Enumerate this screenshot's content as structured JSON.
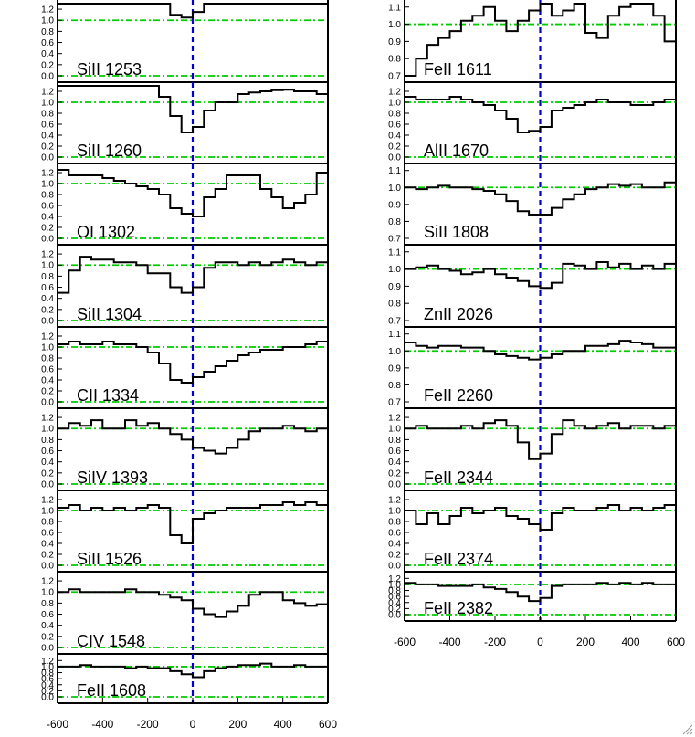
{
  "colors": {
    "axis": "#000000",
    "spectrum": "#000000",
    "continuum": "#00cc00",
    "zero_velocity": "#0000cc"
  },
  "chart_data": {
    "type": "line",
    "x_unit": "velocity",
    "xlim": [
      -600,
      600
    ],
    "x_ticks": [
      -600,
      -400,
      -200,
      0,
      200,
      400,
      600
    ],
    "x_ticks_labels": [
      "-600",
      "-400",
      "-200",
      "0",
      "200",
      "400",
      "600"
    ],
    "grid": false,
    "bin_edges": [
      -600,
      -550,
      -500,
      -450,
      -400,
      -350,
      -300,
      -250,
      -200,
      -150,
      -100,
      -50,
      0,
      50,
      100,
      150,
      200,
      250,
      300,
      350,
      400,
      450,
      500,
      550,
      600
    ],
    "columns": [
      {
        "panels": [
          {
            "label": "SiII 1253",
            "ylim": [
              0.0,
              1.3
            ],
            "yticks": [
              "1.2",
              "1.0",
              "0.8",
              "0.6",
              "0.4",
              "0.2",
              "0.0"
            ],
            "ytick_values": [
              1.2,
              1.0,
              0.8,
              0.6,
              0.4,
              0.2,
              0.0
            ],
            "continuum": [
              1.0,
              0.0
            ],
            "values": [
              1.3,
              1.3,
              1.3,
              1.3,
              1.3,
              1.3,
              1.3,
              1.3,
              1.3,
              1.3,
              1.1,
              1.05,
              1.15,
              1.3,
              1.3,
              1.3,
              1.3,
              1.3,
              1.3,
              1.3,
              1.3,
              1.3,
              1.3,
              1.3
            ]
          },
          {
            "label": "SiII 1260",
            "ylim": [
              0.0,
              1.3
            ],
            "yticks": [
              "1.2",
              "1.0",
              "0.8",
              "0.6",
              "0.4",
              "0.2",
              "0.0"
            ],
            "ytick_values": [
              1.2,
              1.0,
              0.8,
              0.6,
              0.4,
              0.2,
              0.0
            ],
            "continuum": [
              1.0,
              0.0
            ],
            "values": [
              1.3,
              1.3,
              1.3,
              1.3,
              1.3,
              1.3,
              1.3,
              1.3,
              1.3,
              1.1,
              0.75,
              0.45,
              0.55,
              0.85,
              1.0,
              1.0,
              1.15,
              1.18,
              1.2,
              1.22,
              1.23,
              1.2,
              1.2,
              1.15
            ]
          },
          {
            "label": "OI 1302",
            "ylim": [
              0.0,
              1.3
            ],
            "yticks": [
              "1.2",
              "1.0",
              "0.8",
              "0.6",
              "0.4",
              "0.2",
              "0.0"
            ],
            "ytick_values": [
              1.2,
              1.0,
              0.8,
              0.6,
              0.4,
              0.2,
              0.0
            ],
            "continuum": [
              1.0,
              0.0
            ],
            "values": [
              1.25,
              1.15,
              1.15,
              1.15,
              1.1,
              1.05,
              1.0,
              0.95,
              0.9,
              0.8,
              0.55,
              0.45,
              0.4,
              0.75,
              0.9,
              1.15,
              1.15,
              1.15,
              0.9,
              0.75,
              0.55,
              0.65,
              0.8,
              1.2
            ]
          },
          {
            "label": "SiII 1304",
            "ylim": [
              0.0,
              1.3
            ],
            "yticks": [
              "1.2",
              "1.0",
              "0.8",
              "0.6",
              "0.4",
              "0.2",
              "0.0"
            ],
            "ytick_values": [
              1.2,
              1.0,
              0.8,
              0.6,
              0.4,
              0.2,
              0.0
            ],
            "continuum": [
              1.0,
              0.0
            ],
            "values": [
              0.5,
              0.9,
              1.15,
              1.1,
              1.1,
              1.05,
              1.05,
              1.0,
              0.85,
              0.85,
              0.6,
              0.5,
              0.6,
              0.95,
              1.05,
              1.05,
              1.0,
              1.05,
              1.0,
              1.05,
              1.1,
              1.05,
              1.0,
              1.05
            ]
          },
          {
            "label": "CII 1334",
            "ylim": [
              0.0,
              1.3
            ],
            "yticks": [
              "1.2",
              "1.0",
              "0.8",
              "0.6",
              "0.4",
              "0.2",
              "0.0"
            ],
            "ytick_values": [
              1.2,
              1.0,
              0.8,
              0.6,
              0.4,
              0.2,
              0.0
            ],
            "continuum": [
              1.0,
              0.0
            ],
            "values": [
              1.05,
              1.1,
              1.05,
              1.05,
              1.1,
              1.05,
              1.05,
              1.0,
              0.9,
              0.7,
              0.4,
              0.35,
              0.45,
              0.55,
              0.65,
              0.75,
              0.85,
              0.9,
              0.95,
              0.95,
              1.0,
              1.0,
              1.05,
              1.1
            ]
          },
          {
            "label": "SiIV 1393",
            "ylim": [
              0.0,
              1.3
            ],
            "yticks": [
              "1.2",
              "1.0",
              "0.8",
              "0.6",
              "0.4",
              "0.2",
              "0.0"
            ],
            "ytick_values": [
              1.2,
              1.0,
              0.8,
              0.6,
              0.4,
              0.2,
              0.0
            ],
            "continuum": [
              1.0,
              0.0
            ],
            "values": [
              1.0,
              1.1,
              1.05,
              1.15,
              1.0,
              1.0,
              1.15,
              1.05,
              1.1,
              1.0,
              0.9,
              0.8,
              0.65,
              0.6,
              0.55,
              0.65,
              0.8,
              0.95,
              1.0,
              1.0,
              1.05,
              1.0,
              0.95,
              1.0
            ]
          },
          {
            "label": "SiII 1526",
            "ylim": [
              0.0,
              1.3
            ],
            "yticks": [
              "1.2",
              "1.0",
              "0.8",
              "0.6",
              "0.4",
              "0.2",
              "0.0"
            ],
            "ytick_values": [
              1.2,
              1.0,
              0.8,
              0.6,
              0.4,
              0.2,
              0.0
            ],
            "continuum": [
              1.0,
              0.0
            ],
            "values": [
              1.05,
              1.1,
              1.0,
              1.05,
              1.0,
              1.05,
              1.0,
              1.05,
              1.1,
              1.05,
              0.55,
              0.4,
              0.85,
              0.95,
              1.0,
              1.05,
              1.05,
              1.05,
              1.1,
              1.1,
              1.15,
              1.1,
              1.15,
              1.1
            ]
          },
          {
            "label": "CIV 1548",
            "ylim": [
              0.0,
              1.3
            ],
            "yticks": [
              "1.2",
              "1.0",
              "0.8",
              "0.6",
              "0.4",
              "0.2",
              "0.0"
            ],
            "ytick_values": [
              1.2,
              1.0,
              0.8,
              0.6,
              0.4,
              0.2,
              0.0
            ],
            "continuum": [
              1.0,
              0.0
            ],
            "values": [
              1.0,
              1.05,
              1.0,
              1.0,
              1.0,
              1.0,
              1.05,
              1.0,
              1.0,
              0.95,
              0.9,
              0.85,
              0.7,
              0.6,
              0.55,
              0.65,
              0.75,
              0.95,
              1.0,
              1.0,
              0.85,
              0.8,
              0.75,
              0.78
            ]
          },
          {
            "label": "FeII 1608",
            "ylim": [
              0.0,
              1.3
            ],
            "yticks": [
              "1.2",
              "1.0",
              "0.8",
              "0.6",
              "0.4",
              "0.2",
              "0.0"
            ],
            "ytick_values": [
              1.2,
              1.0,
              0.8,
              0.6,
              0.4,
              0.2,
              0.0
            ],
            "continuum": [
              1.0,
              0.0
            ],
            "values": [
              1.0,
              1.0,
              1.05,
              1.0,
              1.0,
              1.0,
              0.95,
              1.0,
              0.95,
              0.95,
              0.85,
              0.75,
              0.65,
              0.85,
              0.95,
              1.0,
              1.05,
              1.05,
              1.1,
              1.0,
              1.0,
              1.05,
              1.0,
              1.0
            ]
          }
        ]
      },
      {
        "panels": [
          {
            "label": "FeII 1611",
            "ylim": [
              0.7,
              1.12
            ],
            "yticks": [
              "1.1",
              "1.0",
              "0.9",
              "0.8",
              "0.7"
            ],
            "ytick_values": [
              1.1,
              1.0,
              0.9,
              0.8,
              0.7
            ],
            "continuum": [
              1.0
            ],
            "values": [
              0.7,
              0.8,
              0.88,
              0.92,
              0.96,
              1.02,
              1.05,
              1.1,
              1.02,
              0.96,
              1.02,
              1.08,
              1.12,
              1.05,
              1.08,
              1.12,
              0.95,
              0.92,
              1.05,
              1.1,
              1.12,
              1.12,
              1.05,
              0.9
            ]
          },
          {
            "label": "AlII 1670",
            "ylim": [
              0.0,
              1.3
            ],
            "yticks": [
              "1.2",
              "1.0",
              "0.8",
              "0.6",
              "0.4",
              "0.2",
              "0.0"
            ],
            "ytick_values": [
              1.2,
              1.0,
              0.8,
              0.6,
              0.4,
              0.2,
              0.0
            ],
            "continuum": [
              1.0,
              0.0
            ],
            "values": [
              1.1,
              1.05,
              1.05,
              1.05,
              1.1,
              1.05,
              1.0,
              0.95,
              0.85,
              0.7,
              0.45,
              0.48,
              0.55,
              0.85,
              0.9,
              0.95,
              1.0,
              1.05,
              1.0,
              1.0,
              0.95,
              0.95,
              1.0,
              1.05
            ]
          },
          {
            "label": "SiII 1808",
            "ylim": [
              0.7,
              1.12
            ],
            "yticks": [
              "1.1",
              "1.0",
              "0.9",
              "0.8",
              "0.7"
            ],
            "ytick_values": [
              1.1,
              1.0,
              0.9,
              0.8,
              0.7
            ],
            "continuum": [
              1.0
            ],
            "values": [
              1.0,
              0.99,
              1.0,
              1.01,
              1.0,
              1.0,
              0.99,
              0.98,
              0.96,
              0.92,
              0.86,
              0.84,
              0.84,
              0.88,
              0.93,
              0.96,
              0.99,
              1.0,
              1.02,
              1.01,
              1.02,
              1.0,
              1.0,
              1.03
            ]
          },
          {
            "label": "ZnII 2026",
            "ylim": [
              0.7,
              1.12
            ],
            "yticks": [
              "1.1",
              "1.0",
              "0.9",
              "0.8",
              "0.7"
            ],
            "ytick_values": [
              1.1,
              1.0,
              0.9,
              0.8,
              0.7
            ],
            "continuum": [
              1.0
            ],
            "values": [
              1.0,
              1.01,
              1.02,
              1.0,
              0.99,
              0.97,
              0.98,
              1.0,
              0.97,
              0.95,
              0.93,
              0.9,
              0.89,
              0.92,
              1.03,
              1.02,
              1.0,
              1.04,
              1.01,
              1.03,
              1.0,
              1.02,
              1.0,
              1.03
            ]
          },
          {
            "label": "FeII 2260",
            "ylim": [
              0.7,
              1.12
            ],
            "yticks": [
              "1.1",
              "1.0",
              "0.9",
              "0.8",
              "0.7"
            ],
            "ytick_values": [
              1.1,
              1.0,
              0.9,
              0.8,
              0.7
            ],
            "continuum": [
              1.0
            ],
            "values": [
              1.05,
              1.03,
              1.02,
              1.03,
              1.03,
              1.02,
              1.02,
              1.0,
              0.98,
              0.97,
              0.96,
              0.95,
              0.96,
              0.98,
              1.0,
              1.0,
              1.03,
              1.03,
              1.04,
              1.06,
              1.05,
              1.04,
              1.02,
              1.02
            ]
          },
          {
            "label": "FeII 2344",
            "ylim": [
              0.0,
              1.3
            ],
            "yticks": [
              "1.2",
              "1.0",
              "0.8",
              "0.6",
              "0.4",
              "0.2",
              "0.0"
            ],
            "ytick_values": [
              1.2,
              1.0,
              0.8,
              0.6,
              0.4,
              0.2,
              0.0
            ],
            "continuum": [
              1.0,
              0.0
            ],
            "values": [
              1.0,
              1.05,
              1.0,
              1.0,
              1.0,
              1.05,
              1.0,
              1.1,
              1.15,
              1.05,
              0.75,
              0.45,
              0.55,
              0.9,
              1.15,
              1.05,
              1.0,
              1.05,
              1.1,
              1.0,
              1.05,
              1.05,
              1.0,
              1.05
            ]
          },
          {
            "label": "FeII 2374",
            "ylim": [
              0.0,
              1.3
            ],
            "yticks": [
              "1.2",
              "1.0",
              "0.8",
              "0.6",
              "0.4",
              "0.2",
              "0.0"
            ],
            "ytick_values": [
              1.2,
              1.0,
              0.8,
              0.6,
              0.4,
              0.2,
              0.0
            ],
            "continuum": [
              1.0,
              0.0
            ],
            "values": [
              1.0,
              0.75,
              0.95,
              0.75,
              0.9,
              1.05,
              0.95,
              1.0,
              1.05,
              0.9,
              0.85,
              0.75,
              0.65,
              0.95,
              1.05,
              1.0,
              1.0,
              1.05,
              1.1,
              1.0,
              1.05,
              1.0,
              1.05,
              1.1
            ]
          },
          {
            "label": "FeII 2382",
            "ylim": [
              0.0,
              1.3
            ],
            "yticks": [
              "1.2",
              "1.0",
              "0.8",
              "0.6",
              "0.4",
              "0.2",
              "0.0"
            ],
            "ytick_values": [
              1.2,
              1.0,
              0.8,
              0.6,
              0.4,
              0.2,
              0.0
            ],
            "continuum": [
              1.0,
              0.0
            ],
            "values": [
              1.05,
              1.0,
              1.0,
              0.95,
              0.95,
              0.95,
              1.0,
              0.9,
              0.85,
              0.75,
              0.6,
              0.45,
              0.55,
              0.95,
              1.0,
              1.0,
              1.0,
              1.05,
              1.0,
              1.05,
              1.0,
              1.05,
              1.0,
              1.0
            ]
          }
        ]
      }
    ]
  }
}
